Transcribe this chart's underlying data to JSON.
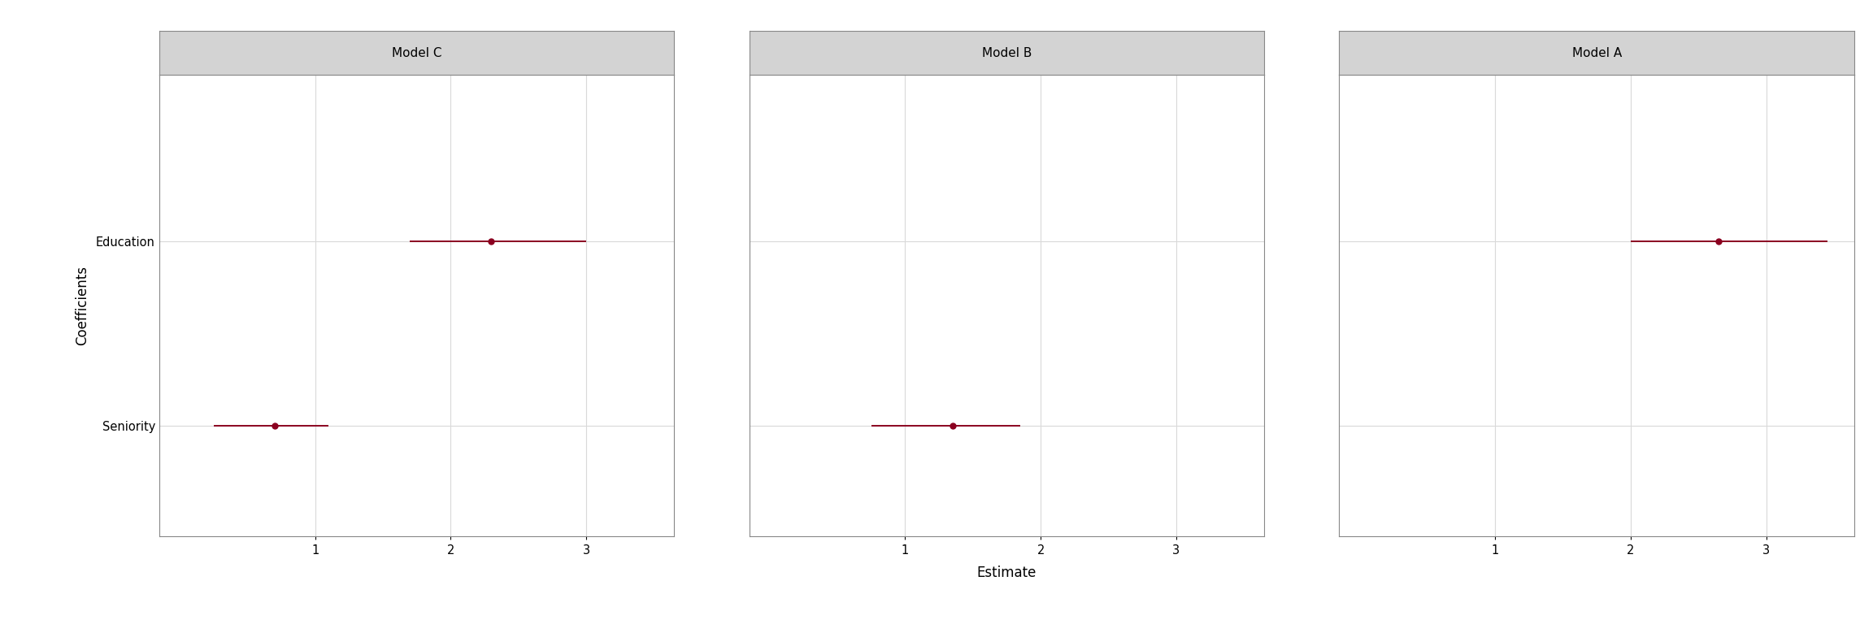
{
  "panels": [
    {
      "title": "Model C",
      "coefficients": [
        {
          "name": "Education",
          "estimate": 2.3,
          "ci_low": 1.7,
          "ci_high": 3.0
        },
        {
          "name": "Seniority",
          "estimate": 0.7,
          "ci_low": 0.25,
          "ci_high": 1.1
        }
      ],
      "xlim": [
        -0.15,
        3.65
      ],
      "xticks": [
        1,
        2,
        3
      ]
    },
    {
      "title": "Model B",
      "coefficients": [
        {
          "name": "Education",
          "estimate": null,
          "ci_low": null,
          "ci_high": null
        },
        {
          "name": "Seniority",
          "estimate": 1.35,
          "ci_low": 0.75,
          "ci_high": 1.85
        }
      ],
      "xlim": [
        -0.15,
        3.65
      ],
      "xticks": [
        1,
        2,
        3
      ]
    },
    {
      "title": "Model A",
      "coefficients": [
        {
          "name": "Education",
          "estimate": 2.65,
          "ci_low": 2.0,
          "ci_high": 3.45
        },
        {
          "name": "Seniority",
          "estimate": null,
          "ci_low": null,
          "ci_high": null
        }
      ],
      "xlim": [
        -0.15,
        3.65
      ],
      "xticks": [
        1,
        2,
        3
      ]
    }
  ],
  "ytick_labels": [
    "Education",
    "Seniority"
  ],
  "ytick_positions": [
    1,
    0
  ],
  "ylabel": "Coefficients",
  "xlabel": "Estimate",
  "dot_color": "#8B0020",
  "line_color": "#8B0020",
  "dot_size": 25,
  "line_width": 1.4,
  "panel_title_fontsize": 11,
  "axis_label_fontsize": 12,
  "tick_label_fontsize": 10.5,
  "background_color": "#ffffff",
  "plot_bg_color": "#ffffff",
  "grid_color": "#d9d9d9",
  "strip_bg_color": "#d3d3d3",
  "strip_text_color": "#000000",
  "spine_color": "#888888"
}
